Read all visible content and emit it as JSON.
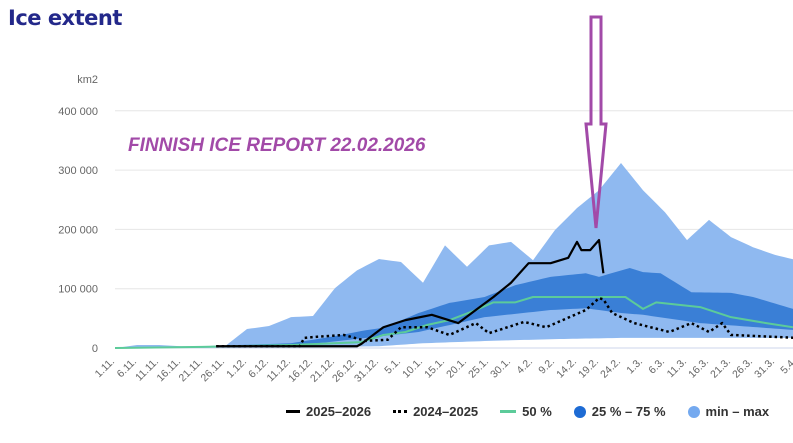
{
  "title": "Ice extent",
  "overlay_text": "FINNISH ICE REPORT 22.02.2026",
  "colors": {
    "max_band": "#8fb9f0",
    "iqr_band": "#3a7fd6",
    "median": "#5ccb9a",
    "current": "#000000",
    "previous": "#000000",
    "arrow": "#a24aa8",
    "title": "#23288a"
  },
  "chart_data": {
    "type": "area",
    "title": "Ice extent",
    "ylabel": "km2",
    "xlabel": "",
    "x_unit": "days since 1.11.",
    "ylim": [
      0,
      400000
    ],
    "yticks": [
      0,
      100000,
      200000,
      300000,
      400000
    ],
    "ytick_labels": [
      "0",
      "100 000",
      "200 000",
      "300 000",
      "400 000"
    ],
    "xtick_labels": [
      "1.11.",
      "6.11.",
      "11.11.",
      "16.11.",
      "21.11.",
      "26.11.",
      "1.12.",
      "6.12.",
      "11.12.",
      "16.12.",
      "21.12.",
      "26.12.",
      "31.12.",
      "5.1.",
      "10.1.",
      "15.1.",
      "20.1.",
      "25.1.",
      "30.1.",
      "4.2.",
      "9.2.",
      "14.2.",
      "19.2.",
      "24.2.",
      "1.3.",
      "6.3.",
      "11.3.",
      "16.3.",
      "21.3.",
      "26.3.",
      "31.3.",
      "5.4."
    ],
    "grid": true,
    "legend_position": "bottom-right",
    "legend": [
      "2025–2026",
      "2024–2025",
      "50 %",
      "25 % – 75 %",
      "min – max"
    ],
    "bands": {
      "max": [
        [
          0,
          0
        ],
        [
          5,
          5000
        ],
        [
          10,
          5000
        ],
        [
          15,
          3000
        ],
        [
          20,
          3000
        ],
        [
          25,
          3000
        ],
        [
          30,
          32000
        ],
        [
          35,
          37000
        ],
        [
          40,
          52000
        ],
        [
          45,
          54000
        ],
        [
          50,
          101000
        ],
        [
          55,
          131000
        ],
        [
          60,
          150000
        ],
        [
          65,
          145000
        ],
        [
          70,
          110000
        ],
        [
          75,
          173000
        ],
        [
          80,
          137000
        ],
        [
          85,
          173000
        ],
        [
          90,
          179000
        ],
        [
          95,
          148000
        ],
        [
          100,
          199000
        ],
        [
          105,
          236000
        ],
        [
          110,
          266000
        ],
        [
          115,
          312000
        ],
        [
          120,
          266000
        ],
        [
          125,
          229000
        ],
        [
          130,
          182000
        ],
        [
          135,
          216000
        ],
        [
          140,
          187000
        ],
        [
          145,
          170000
        ],
        [
          150,
          157000
        ],
        [
          155,
          148000
        ]
      ],
      "p75": [
        [
          0,
          0
        ],
        [
          20,
          3000
        ],
        [
          40,
          8000
        ],
        [
          50,
          20000
        ],
        [
          57,
          30000
        ],
        [
          61,
          34000
        ],
        [
          69,
          59000
        ],
        [
          76,
          76000
        ],
        [
          84,
          86000
        ],
        [
          91,
          106000
        ],
        [
          99,
          120000
        ],
        [
          107,
          126000
        ],
        [
          110,
          120000
        ],
        [
          117,
          135000
        ],
        [
          120,
          128000
        ],
        [
          124,
          126000
        ],
        [
          131,
          94000
        ],
        [
          140,
          93000
        ],
        [
          145,
          86000
        ],
        [
          155,
          64000
        ]
      ],
      "p25": [
        [
          0,
          0
        ],
        [
          40,
          3000
        ],
        [
          57,
          17000
        ],
        [
          69,
          27000
        ],
        [
          84,
          52000
        ],
        [
          99,
          64000
        ],
        [
          107,
          67000
        ],
        [
          115,
          59000
        ],
        [
          120,
          56000
        ],
        [
          133,
          42000
        ],
        [
          155,
          30000
        ]
      ],
      "min": [
        [
          0,
          0
        ],
        [
          40,
          1000
        ],
        [
          60,
          3000
        ],
        [
          70,
          8000
        ],
        [
          85,
          12000
        ],
        [
          100,
          15000
        ],
        [
          115,
          17000
        ],
        [
          130,
          17000
        ],
        [
          155,
          17000
        ]
      ]
    },
    "series": [
      {
        "name": "2025–2026",
        "style": "solid",
        "points": [
          [
            23,
            3000
          ],
          [
            40,
            3000
          ],
          [
            55,
            3000
          ],
          [
            56,
            7000
          ],
          [
            61,
            35000
          ],
          [
            66,
            47000
          ],
          [
            72,
            56000
          ],
          [
            78,
            42000
          ],
          [
            82,
            64000
          ],
          [
            86,
            86000
          ],
          [
            90,
            110000
          ],
          [
            94,
            143000
          ],
          [
            99,
            143000
          ],
          [
            103,
            152000
          ],
          [
            105,
            179000
          ],
          [
            106,
            165000
          ],
          [
            108,
            165000
          ],
          [
            110,
            182000
          ],
          [
            111,
            126000
          ]
        ]
      },
      {
        "name": "2024–2025",
        "style": "dotted",
        "points": [
          [
            23,
            3000
          ],
          [
            42,
            3000
          ],
          [
            43,
            17000
          ],
          [
            46,
            19000
          ],
          [
            52,
            22000
          ],
          [
            57,
            12000
          ],
          [
            62,
            14000
          ],
          [
            65,
            35000
          ],
          [
            71,
            35000
          ],
          [
            76,
            22000
          ],
          [
            82,
            42000
          ],
          [
            85,
            25000
          ],
          [
            93,
            44000
          ],
          [
            98,
            35000
          ],
          [
            107,
            64000
          ],
          [
            110,
            84000
          ],
          [
            111,
            82000
          ],
          [
            113,
            59000
          ],
          [
            118,
            42000
          ],
          [
            126,
            27000
          ],
          [
            131,
            42000
          ],
          [
            135,
            27000
          ],
          [
            138,
            42000
          ],
          [
            140,
            22000
          ],
          [
            155,
            17000
          ]
        ]
      },
      {
        "name": "50 %",
        "style": "solid",
        "points": [
          [
            0,
            0
          ],
          [
            20,
            2000
          ],
          [
            40,
            5000
          ],
          [
            56,
            10000
          ],
          [
            61,
            22000
          ],
          [
            66,
            27000
          ],
          [
            71,
            39000
          ],
          [
            76,
            47000
          ],
          [
            82,
            64000
          ],
          [
            86,
            77000
          ],
          [
            91,
            77000
          ],
          [
            95,
            86000
          ],
          [
            99,
            86000
          ],
          [
            110,
            86000
          ],
          [
            116,
            86000
          ],
          [
            120,
            66000
          ],
          [
            123,
            77000
          ],
          [
            133,
            69000
          ],
          [
            140,
            52000
          ],
          [
            148,
            42000
          ],
          [
            155,
            34000
          ]
        ]
      }
    ]
  }
}
